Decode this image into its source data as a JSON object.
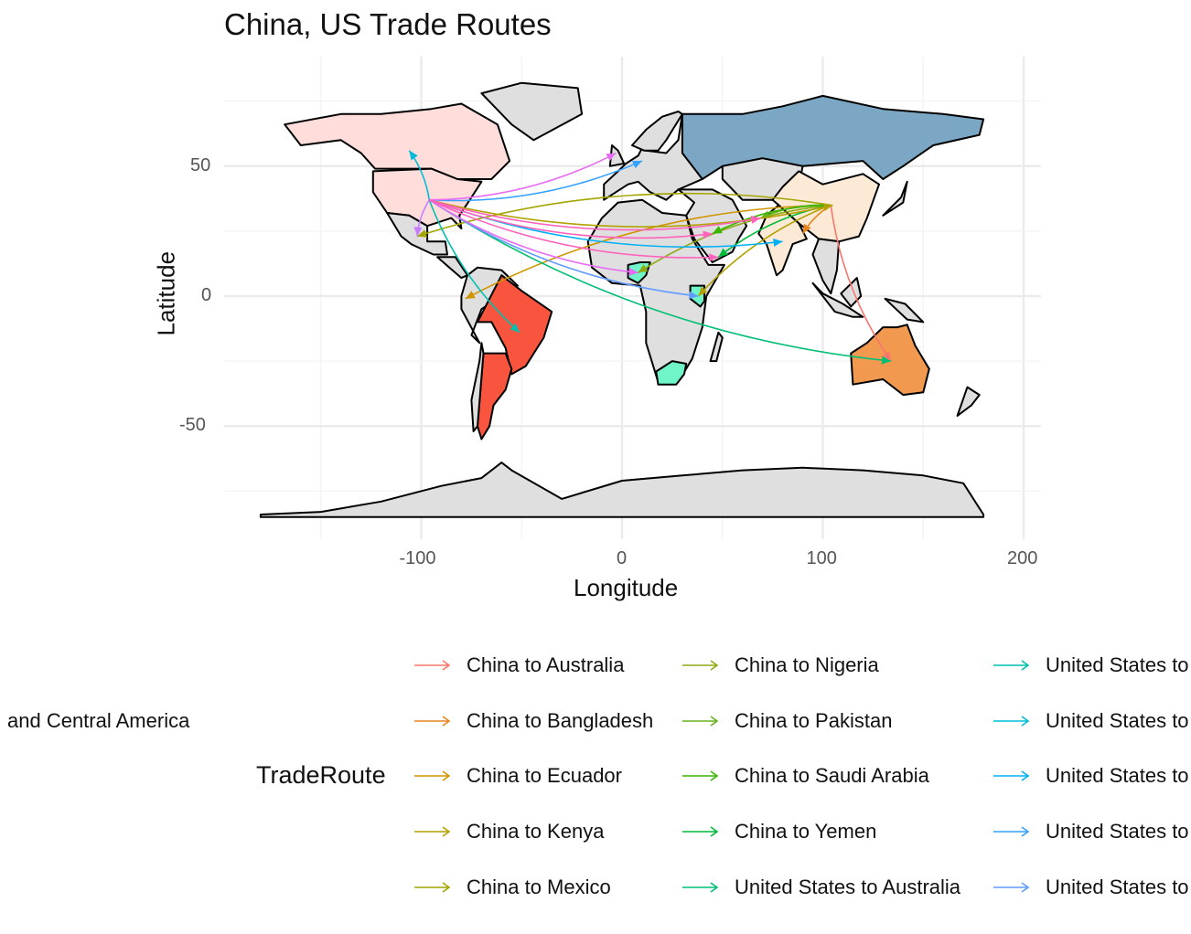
{
  "title": "China, US Trade Routes",
  "chart_data": {
    "type": "map",
    "title": "China, US Trade Routes",
    "xlabel": "Longitude",
    "ylabel": "Latitude",
    "xlim": [
      -180,
      200
    ],
    "ylim": [
      -90,
      85
    ],
    "x_ticks": [
      -100,
      0,
      100,
      200
    ],
    "y_ticks": [
      -50,
      0,
      50
    ],
    "grid": true,
    "legend_title": "TradeRoute",
    "legend_position": "bottom",
    "legend_items": [
      {
        "label": "China to Australia",
        "color": "#F8766D"
      },
      {
        "label": "China to Bangladesh",
        "color": "#E7851E"
      },
      {
        "label": "China to Ecuador",
        "color": "#D09400"
      },
      {
        "label": "China to Kenya",
        "color": "#B2A100"
      },
      {
        "label": "China to Mexico",
        "color": "#A3A500"
      },
      {
        "label": "China to Nigeria",
        "color": "#8EAB12"
      },
      {
        "label": "China to Pakistan",
        "color": "#68B31D"
      },
      {
        "label": "China to Saudi Arabia",
        "color": "#39B600"
      },
      {
        "label": "China to Yemen",
        "color": "#00BA38"
      },
      {
        "label": "United States to Australia",
        "color": "#00BF74"
      },
      {
        "label": "United States to",
        "color": "#00C0AF"
      },
      {
        "label": "United States to",
        "color": "#00BCD8"
      },
      {
        "label": "United States to",
        "color": "#00B0F6"
      },
      {
        "label": "United States to",
        "color": "#35A2FF"
      },
      {
        "label": "United States to",
        "color": "#619CFF"
      }
    ],
    "overflow_label": "and Central America",
    "origins": {
      "China": [
        104,
        35
      ],
      "United States": [
        -96,
        37
      ]
    },
    "routes": [
      {
        "from": "China",
        "to": [
          134,
          -25
        ],
        "color": "#F8766D"
      },
      {
        "from": "China",
        "to": [
          90,
          24
        ],
        "color": "#E7851E"
      },
      {
        "from": "China",
        "to": [
          -78,
          -1
        ],
        "color": "#D09400"
      },
      {
        "from": "China",
        "to": [
          38,
          0
        ],
        "color": "#B2A100"
      },
      {
        "from": "China",
        "to": [
          -102,
          23
        ],
        "color": "#A3A500"
      },
      {
        "from": "China",
        "to": [
          8,
          9
        ],
        "color": "#8EAB12"
      },
      {
        "from": "China",
        "to": [
          69,
          30
        ],
        "color": "#68B31D"
      },
      {
        "from": "China",
        "to": [
          45,
          24
        ],
        "color": "#39B600"
      },
      {
        "from": "China",
        "to": [
          48,
          15
        ],
        "color": "#00BA38"
      },
      {
        "from": "United States",
        "to": [
          134,
          -25
        ],
        "color": "#00BF74"
      },
      {
        "from": "United States",
        "to": [
          -51,
          -14
        ],
        "color": "#00C0AF"
      },
      {
        "from": "United States",
        "to": [
          -106,
          56
        ],
        "color": "#00BCD8"
      },
      {
        "from": "United States",
        "to": [
          80,
          21
        ],
        "color": "#00B0F6"
      },
      {
        "from": "United States",
        "to": [
          10,
          52
        ],
        "color": "#35A2FF"
      },
      {
        "from": "United States",
        "to": [
          38,
          0
        ],
        "color": "#619CFF"
      },
      {
        "from": "United States",
        "to": [
          105,
          35
        ],
        "color": "#B2A100"
      },
      {
        "from": "United States",
        "to": [
          -3,
          55
        ],
        "color": "#E76BF3"
      },
      {
        "from": "United States",
        "to": [
          8,
          9
        ],
        "color": "#E76BF3"
      },
      {
        "from": "United States",
        "to": [
          45,
          24
        ],
        "color": "#FF62BC"
      },
      {
        "from": "United States",
        "to": [
          -102,
          23
        ],
        "color": "#C77CFF"
      },
      {
        "from": "United States",
        "to": [
          48,
          15
        ],
        "color": "#FF62BC"
      },
      {
        "from": "United States",
        "to": [
          69,
          30
        ],
        "color": "#FF62BC"
      }
    ],
    "highlighted_countries": [
      {
        "name": "United States",
        "color": "#FFDDDB"
      },
      {
        "name": "China",
        "color": "#FCEAD6"
      },
      {
        "name": "Russia",
        "color": "#7BA7C4"
      },
      {
        "name": "Brazil",
        "color": "#F8543E"
      },
      {
        "name": "Argentina",
        "color": "#F8543E"
      },
      {
        "name": "Australia",
        "color": "#F0994F"
      },
      {
        "name": "South Africa",
        "color": "#6FF5C7"
      },
      {
        "name": "Nigeria",
        "color": "#6FF5C7"
      },
      {
        "name": "Kenya",
        "color": "#6FF5C7"
      },
      {
        "name": "India",
        "color": "#FCEAD6"
      },
      {
        "name": "Canada",
        "color": "#FFDDDB"
      }
    ],
    "land_color": "#DFDFDF",
    "border_color": "#000000"
  }
}
